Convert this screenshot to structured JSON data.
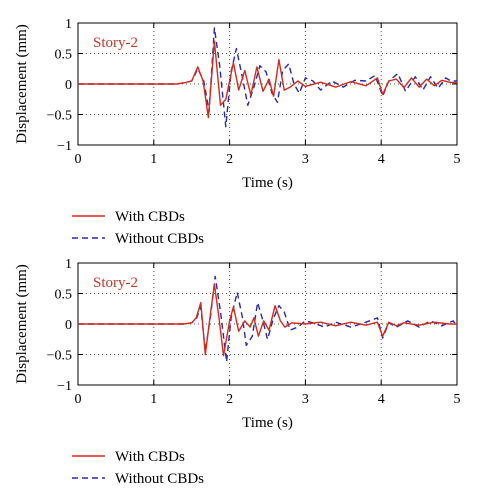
{
  "chart_data": [
    {
      "type": "line",
      "annotation": "Story-2",
      "xlabel": "Time (s)",
      "ylabel": "Displacement (mm)",
      "xlim": [
        0,
        5
      ],
      "ylim": [
        -1,
        1
      ],
      "xticks": [
        "0",
        "1",
        "2",
        "3",
        "4",
        "5"
      ],
      "yticks": [
        "1",
        "0.5",
        "0",
        "−0.5",
        "−1"
      ],
      "grid": true,
      "legend_placement": "below",
      "series": [
        {
          "name": "With CBDs",
          "color": "#d62a1e",
          "dash": "solid",
          "points": [
            [
              0,
              0
            ],
            [
              1.3,
              0
            ],
            [
              1.4,
              0.02
            ],
            [
              1.5,
              0.05
            ],
            [
              1.58,
              0.28
            ],
            [
              1.65,
              0.05
            ],
            [
              1.72,
              -0.55
            ],
            [
              1.8,
              0.7
            ],
            [
              1.88,
              -0.35
            ],
            [
              1.95,
              -0.25
            ],
            [
              2.05,
              0.35
            ],
            [
              2.12,
              -0.1
            ],
            [
              2.2,
              0.22
            ],
            [
              2.28,
              -0.18
            ],
            [
              2.36,
              0.28
            ],
            [
              2.44,
              -0.12
            ],
            [
              2.52,
              0.08
            ],
            [
              2.58,
              -0.2
            ],
            [
              2.65,
              0.4
            ],
            [
              2.72,
              -0.1
            ],
            [
              2.8,
              -0.05
            ],
            [
              2.9,
              0.05
            ],
            [
              3.0,
              -0.04
            ],
            [
              3.2,
              0.03
            ],
            [
              3.4,
              -0.05
            ],
            [
              3.6,
              0.04
            ],
            [
              3.8,
              -0.03
            ],
            [
              3.95,
              0.1
            ],
            [
              4.02,
              -0.17
            ],
            [
              4.1,
              0.05
            ],
            [
              4.2,
              0.08
            ],
            [
              4.3,
              -0.06
            ],
            [
              4.4,
              0.1
            ],
            [
              4.5,
              -0.05
            ],
            [
              4.6,
              0.08
            ],
            [
              4.7,
              -0.03
            ],
            [
              4.8,
              0.06
            ],
            [
              4.9,
              0.03
            ],
            [
              5.0,
              0.02
            ]
          ]
        },
        {
          "name": "Without CBDs",
          "color": "#2a2aa8",
          "dash": "dashed",
          "points": [
            [
              0,
              0
            ],
            [
              1.3,
              0
            ],
            [
              1.4,
              0.02
            ],
            [
              1.5,
              0.05
            ],
            [
              1.58,
              0.25
            ],
            [
              1.66,
              0.05
            ],
            [
              1.73,
              -0.45
            ],
            [
              1.8,
              0.92
            ],
            [
              1.87,
              0.3
            ],
            [
              1.95,
              -0.7
            ],
            [
              2.02,
              0.2
            ],
            [
              2.09,
              0.58
            ],
            [
              2.17,
              0.1
            ],
            [
              2.24,
              -0.35
            ],
            [
              2.32,
              -0.05
            ],
            [
              2.4,
              0.3
            ],
            [
              2.48,
              0.2
            ],
            [
              2.56,
              -0.15
            ],
            [
              2.63,
              -0.3
            ],
            [
              2.7,
              0.22
            ],
            [
              2.78,
              0.33
            ],
            [
              2.85,
              0.0
            ],
            [
              2.92,
              -0.15
            ],
            [
              3.0,
              0.1
            ],
            [
              3.1,
              0.05
            ],
            [
              3.2,
              -0.1
            ],
            [
              3.35,
              0.05
            ],
            [
              3.5,
              -0.05
            ],
            [
              3.65,
              0.06
            ],
            [
              3.8,
              0.05
            ],
            [
              3.92,
              0.14
            ],
            [
              4.02,
              -0.2
            ],
            [
              4.1,
              0.05
            ],
            [
              4.22,
              0.17
            ],
            [
              4.32,
              -0.12
            ],
            [
              4.45,
              0.12
            ],
            [
              4.55,
              -0.1
            ],
            [
              4.65,
              0.12
            ],
            [
              4.75,
              -0.07
            ],
            [
              4.85,
              0.1
            ],
            [
              4.92,
              0.05
            ],
            [
              5.0,
              0.05
            ]
          ]
        }
      ]
    },
    {
      "type": "line",
      "annotation": "Story-2",
      "xlabel": "Time (s)",
      "ylabel": "Displacement (mm)",
      "xlim": [
        0,
        5
      ],
      "ylim": [
        -1,
        1
      ],
      "xticks": [
        "0",
        "1",
        "2",
        "3",
        "4",
        "5"
      ],
      "yticks": [
        "1",
        "0.5",
        "0",
        "−0.5",
        "−1"
      ],
      "grid": true,
      "legend_placement": "below",
      "series": [
        {
          "name": "With CBDs",
          "color": "#d62a1e",
          "dash": "solid",
          "points": [
            [
              0,
              0
            ],
            [
              1.4,
              0
            ],
            [
              1.5,
              0.02
            ],
            [
              1.56,
              0.1
            ],
            [
              1.62,
              0.35
            ],
            [
              1.68,
              -0.5
            ],
            [
              1.75,
              0.2
            ],
            [
              1.8,
              0.65
            ],
            [
              1.86,
              0.1
            ],
            [
              1.92,
              -0.52
            ],
            [
              2.0,
              0.05
            ],
            [
              2.05,
              0.28
            ],
            [
              2.12,
              -0.12
            ],
            [
              2.2,
              0.05
            ],
            [
              2.27,
              -0.05
            ],
            [
              2.32,
              0.1
            ],
            [
              2.38,
              -0.2
            ],
            [
              2.45,
              0.05
            ],
            [
              2.52,
              -0.1
            ],
            [
              2.6,
              0.3
            ],
            [
              2.67,
              0.05
            ],
            [
              2.73,
              -0.05
            ],
            [
              2.82,
              0.02
            ],
            [
              3.0,
              0.0
            ],
            [
              3.2,
              0.03
            ],
            [
              3.4,
              -0.03
            ],
            [
              3.6,
              0.03
            ],
            [
              3.8,
              -0.02
            ],
            [
              3.95,
              0.03
            ],
            [
              4.02,
              -0.2
            ],
            [
              4.1,
              0.03
            ],
            [
              4.2,
              -0.03
            ],
            [
              4.3,
              0.02
            ],
            [
              4.5,
              -0.02
            ],
            [
              4.7,
              0.03
            ],
            [
              4.9,
              0.0
            ],
            [
              5.0,
              0.0
            ]
          ]
        },
        {
          "name": "Without CBDs",
          "color": "#2a2aa8",
          "dash": "dashed",
          "points": [
            [
              0,
              0
            ],
            [
              1.4,
              0
            ],
            [
              1.5,
              0.02
            ],
            [
              1.56,
              0.08
            ],
            [
              1.62,
              0.28
            ],
            [
              1.68,
              -0.45
            ],
            [
              1.75,
              0.15
            ],
            [
              1.81,
              0.78
            ],
            [
              1.88,
              0.2
            ],
            [
              1.96,
              -0.62
            ],
            [
              2.02,
              0.1
            ],
            [
              2.1,
              0.52
            ],
            [
              2.17,
              0.1
            ],
            [
              2.22,
              -0.35
            ],
            [
              2.3,
              -0.2
            ],
            [
              2.37,
              0.35
            ],
            [
              2.44,
              0.05
            ],
            [
              2.5,
              -0.25
            ],
            [
              2.58,
              0.1
            ],
            [
              2.65,
              0.3
            ],
            [
              2.72,
              0.2
            ],
            [
              2.8,
              -0.1
            ],
            [
              2.9,
              -0.05
            ],
            [
              3.0,
              0.05
            ],
            [
              3.1,
              0.02
            ],
            [
              3.25,
              -0.05
            ],
            [
              3.4,
              0.03
            ],
            [
              3.6,
              -0.05
            ],
            [
              3.8,
              0.03
            ],
            [
              3.95,
              0.1
            ],
            [
              4.02,
              -0.23
            ],
            [
              4.1,
              0.02
            ],
            [
              4.2,
              -0.05
            ],
            [
              4.35,
              0.05
            ],
            [
              4.5,
              -0.05
            ],
            [
              4.65,
              0.05
            ],
            [
              4.8,
              -0.03
            ],
            [
              4.95,
              0.05
            ],
            [
              5.0,
              -0.03
            ]
          ]
        }
      ]
    }
  ]
}
